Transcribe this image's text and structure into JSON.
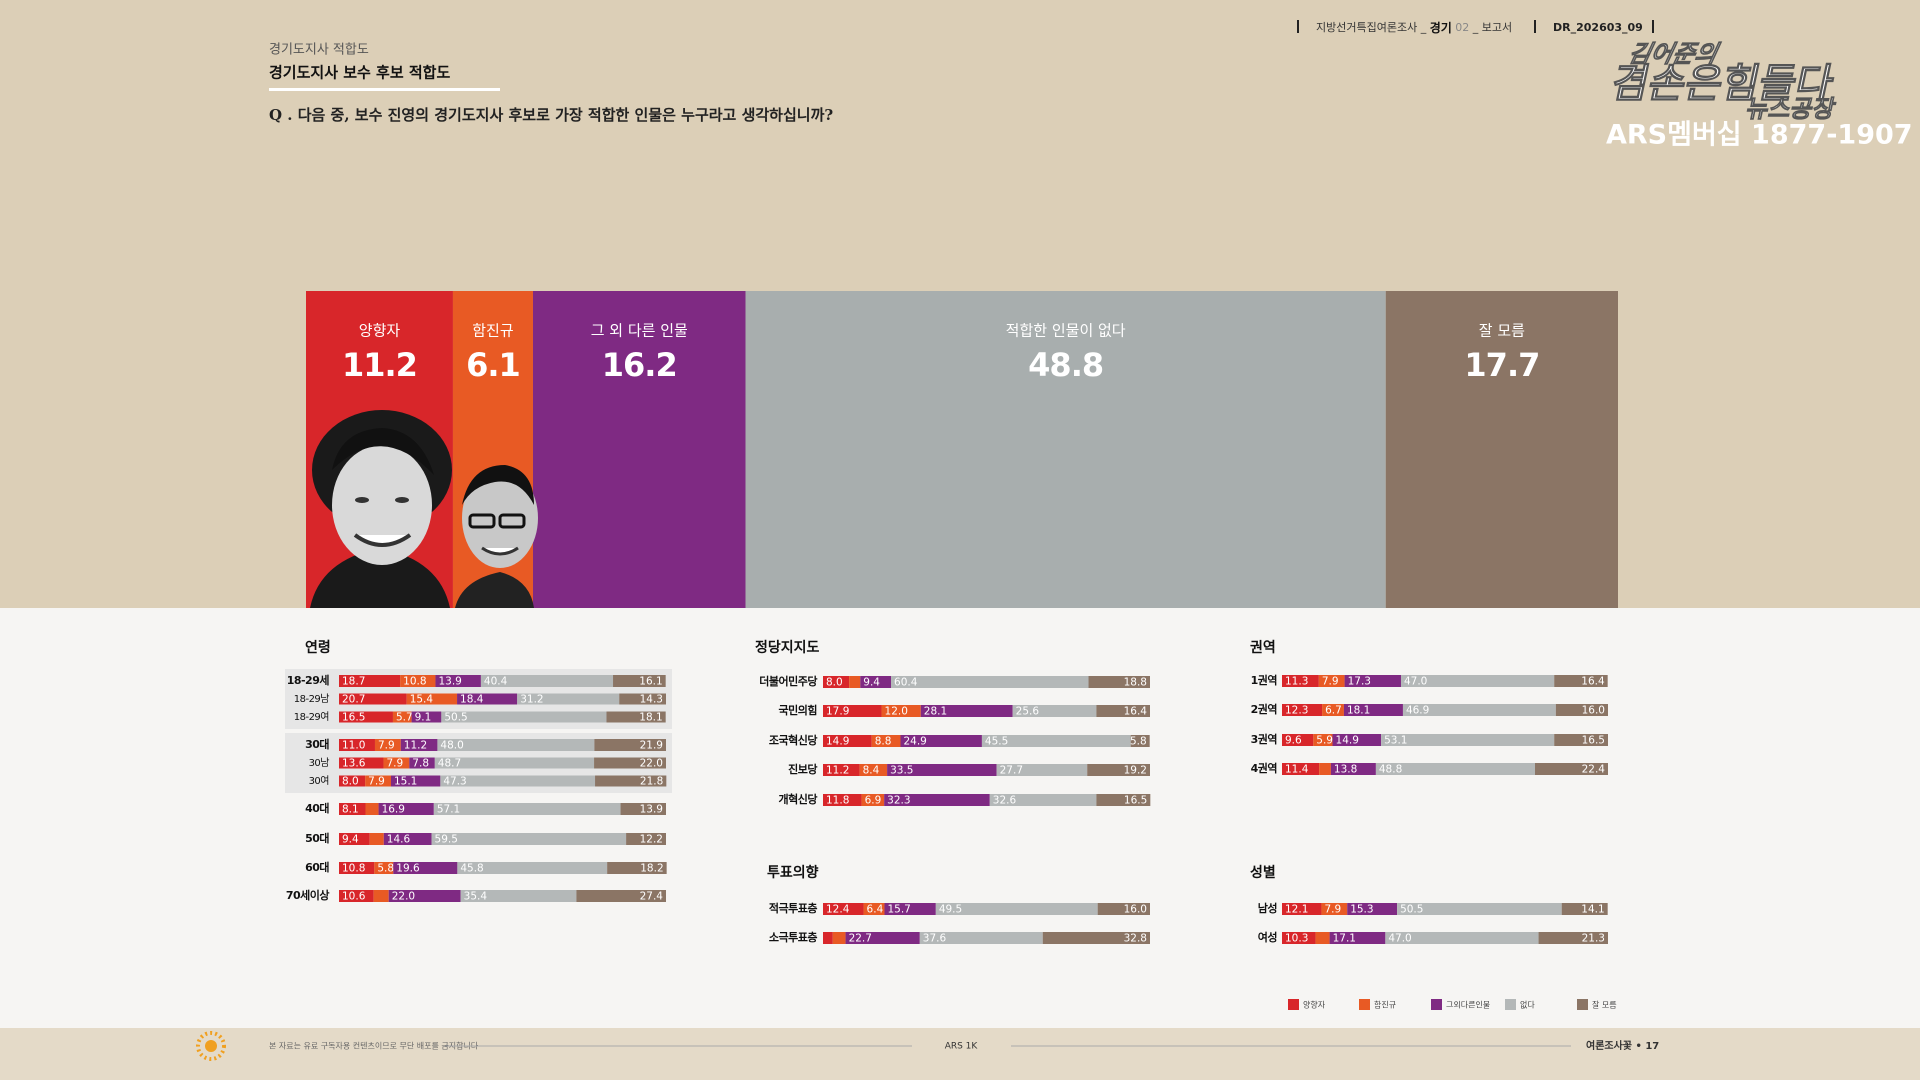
{
  "header": {
    "survey": [
      "지방선거특집여론조사 _",
      "경기",
      "02",
      "_ 보고서"
    ],
    "code": "DR_202603_09",
    "section": "경기도지사 적합도",
    "title": "경기도지사 보수 후보 적합도",
    "question": "Q . 다음 중, 보수 진영의 경기도지사 후보로 가장 적합한 인물은 누구라고 생각하십니까?"
  },
  "logo": {
    "line1": "김어준의",
    "line2": "겸손은힘들다",
    "line3": "뉴스공장",
    "ars": "ARS멤버십 1877-1907"
  },
  "footer": {
    "notice": "본 자료는 유료 구독자용 컨텐츠이므로 무단 배포를 금지합니다",
    "center": "ARS 1K",
    "page": "여론조사꽃 • 17"
  },
  "legend": {
    "items": [
      {
        "label": "양향자",
        "color": "#d8262a"
      },
      {
        "label": "함진규",
        "color": "#e85a24"
      },
      {
        "label": "그외다른인물",
        "color": "#7f2a83"
      },
      {
        "label": "없다",
        "color": "#b4b8b8"
      },
      {
        "label": "잘 모름",
        "color": "#8b7565"
      }
    ]
  },
  "chart_data": [
    {
      "type": "stacked-bar",
      "xlim": [
        0,
        100
      ],
      "series": [
        {
          "name": "양향자",
          "color": "#d8262a",
          "values": [
            11.2
          ]
        },
        {
          "name": "함진규",
          "color": "#e85a24",
          "values": [
            6.1
          ]
        },
        {
          "name": "그 외 다른 인물",
          "color": "#7f2a83",
          "values": [
            16.2
          ]
        },
        {
          "name": "적합한 인물이 없다",
          "color": "#a8aeae",
          "values": [
            48.8
          ]
        },
        {
          "name": "잘 모름",
          "color": "#8b7565",
          "values": [
            17.7
          ]
        }
      ]
    },
    {
      "type": "stacked-bar",
      "title": "연령",
      "xlim": [
        0,
        100
      ],
      "categories": [
        "18-29세",
        "18-29남",
        "18-29여",
        "30대",
        "30남",
        "30여",
        "40대",
        "50대",
        "60대",
        "70세이상"
      ],
      "series": [
        {
          "color": "#d8262a",
          "values": [
            18.7,
            20.7,
            16.5,
            11.0,
            13.6,
            8.0,
            8.1,
            9.4,
            10.8,
            10.6
          ],
          "value_labels": [
            "18.7",
            "20.7",
            "16.5",
            "11.0",
            "13.6",
            "8.0",
            "8.1",
            "9.4",
            "10.8",
            "10.6"
          ]
        },
        {
          "color": "#e85a24",
          "values": [
            10.8,
            15.4,
            5.7,
            7.9,
            7.9,
            7.9,
            4.0,
            4.3,
            5.8,
            4.6
          ],
          "value_labels": [
            "10.8",
            "15.4",
            "5.7",
            "7.9",
            "7.9",
            "7.9",
            null,
            null,
            "5.8",
            null
          ]
        },
        {
          "color": "#7f2a83",
          "values": [
            13.9,
            18.4,
            9.1,
            11.2,
            7.8,
            15.1,
            16.9,
            14.6,
            19.6,
            22.0
          ],
          "value_labels": [
            "13.9",
            "18.4",
            "9.1",
            "11.2",
            "7.8",
            "15.1",
            "16.9",
            "14.6",
            "19.6",
            "22.0"
          ]
        },
        {
          "color": "#b4b8b8",
          "values": [
            40.4,
            31.2,
            50.5,
            48.0,
            48.7,
            47.3,
            57.1,
            59.5,
            45.8,
            35.4
          ],
          "value_labels": [
            "40.4",
            "31.2",
            "50.5",
            "48.0",
            "48.7",
            "47.3",
            "57.1",
            "59.5",
            "45.8",
            "35.4"
          ]
        },
        {
          "color": "#8b7565",
          "values": [
            16.1,
            14.3,
            18.1,
            21.9,
            22.0,
            21.8,
            13.9,
            12.2,
            18.2,
            27.4
          ],
          "value_labels": [
            "16.1",
            "14.3",
            "18.1",
            "21.9",
            "22.0",
            "21.8",
            "13.9",
            "12.2",
            "18.2",
            "27.4"
          ]
        }
      ]
    },
    {
      "type": "stacked-bar",
      "title": "정당지지도",
      "xlim": [
        0,
        100
      ],
      "categories": [
        "더불어민주당",
        "국민의힘",
        "조국혁신당",
        "진보당",
        "개혁신당"
      ],
      "series": [
        {
          "color": "#d8262a",
          "values": [
            8.0,
            17.9,
            14.9,
            11.2,
            11.8
          ],
          "value_labels": [
            "8.0",
            "17.9",
            "14.9",
            "11.2",
            "11.8"
          ]
        },
        {
          "color": "#e85a24",
          "values": [
            3.4,
            12.0,
            8.8,
            8.4,
            6.9
          ],
          "value_labels": [
            null,
            "12.0",
            "8.8",
            "8.4",
            "6.9"
          ]
        },
        {
          "color": "#7f2a83",
          "values": [
            9.4,
            28.1,
            24.9,
            33.5,
            32.3
          ],
          "value_labels": [
            "9.4",
            "28.1",
            "24.9",
            "33.5",
            "32.3"
          ]
        },
        {
          "color": "#b4b8b8",
          "values": [
            60.4,
            25.6,
            45.5,
            27.7,
            32.6
          ],
          "value_labels": [
            "60.4",
            "25.6",
            "45.5",
            "27.7",
            "32.6"
          ]
        },
        {
          "color": "#8b7565",
          "values": [
            18.8,
            16.4,
            5.8,
            19.2,
            16.5
          ],
          "value_labels": [
            "18.8",
            "16.4",
            "5.8",
            "19.2",
            "16.5"
          ]
        }
      ]
    },
    {
      "type": "stacked-bar",
      "title": "투표의향",
      "xlim": [
        0,
        100
      ],
      "categories": [
        "적극투표층",
        "소극투표층"
      ],
      "series": [
        {
          "color": "#d8262a",
          "values": [
            12.4,
            3.0
          ],
          "value_labels": [
            "12.4",
            null
          ]
        },
        {
          "color": "#e85a24",
          "values": [
            6.4,
            3.9
          ],
          "value_labels": [
            "6.4",
            null
          ]
        },
        {
          "color": "#7f2a83",
          "values": [
            15.7,
            22.7
          ],
          "value_labels": [
            "15.7",
            "22.7"
          ]
        },
        {
          "color": "#b4b8b8",
          "values": [
            49.5,
            37.6
          ],
          "value_labels": [
            "49.5",
            "37.6"
          ]
        },
        {
          "color": "#8b7565",
          "values": [
            16.0,
            32.8
          ],
          "value_labels": [
            "16.0",
            "32.8"
          ]
        }
      ]
    },
    {
      "type": "stacked-bar",
      "title": "권역",
      "xlim": [
        0,
        100
      ],
      "categories": [
        "1권역",
        "2권역",
        "3권역",
        "4권역"
      ],
      "series": [
        {
          "color": "#d8262a",
          "values": [
            11.3,
            12.3,
            9.6,
            11.4
          ],
          "value_labels": [
            "11.3",
            "12.3",
            "9.6",
            "11.4"
          ]
        },
        {
          "color": "#e85a24",
          "values": [
            7.9,
            6.7,
            5.9,
            3.6
          ],
          "value_labels": [
            "7.9",
            "6.7",
            "5.9",
            null
          ]
        },
        {
          "color": "#7f2a83",
          "values": [
            17.3,
            18.1,
            14.9,
            13.8
          ],
          "value_labels": [
            "17.3",
            "18.1",
            "14.9",
            "13.8"
          ]
        },
        {
          "color": "#b4b8b8",
          "values": [
            47.0,
            46.9,
            53.1,
            48.8
          ],
          "value_labels": [
            "47.0",
            "46.9",
            "53.1",
            "48.8"
          ]
        },
        {
          "color": "#8b7565",
          "values": [
            16.4,
            16.0,
            16.5,
            22.4
          ],
          "value_labels": [
            "16.4",
            "16.0",
            "16.5",
            "22.4"
          ]
        }
      ]
    },
    {
      "type": "stacked-bar",
      "title": "성별",
      "xlim": [
        0,
        100
      ],
      "categories": [
        "남성",
        "여성"
      ],
      "series": [
        {
          "color": "#d8262a",
          "values": [
            12.1,
            10.3
          ],
          "value_labels": [
            "12.1",
            "10.3"
          ]
        },
        {
          "color": "#e85a24",
          "values": [
            7.9,
            4.3
          ],
          "value_labels": [
            "7.9",
            null
          ]
        },
        {
          "color": "#7f2a83",
          "values": [
            15.3,
            17.1
          ],
          "value_labels": [
            "15.3",
            "17.1"
          ]
        },
        {
          "color": "#b4b8b8",
          "values": [
            50.5,
            47.0
          ],
          "value_labels": [
            "50.5",
            "47.0"
          ]
        },
        {
          "color": "#8b7565",
          "values": [
            14.1,
            21.3
          ],
          "value_labels": [
            "14.1",
            "21.3"
          ]
        }
      ]
    }
  ]
}
